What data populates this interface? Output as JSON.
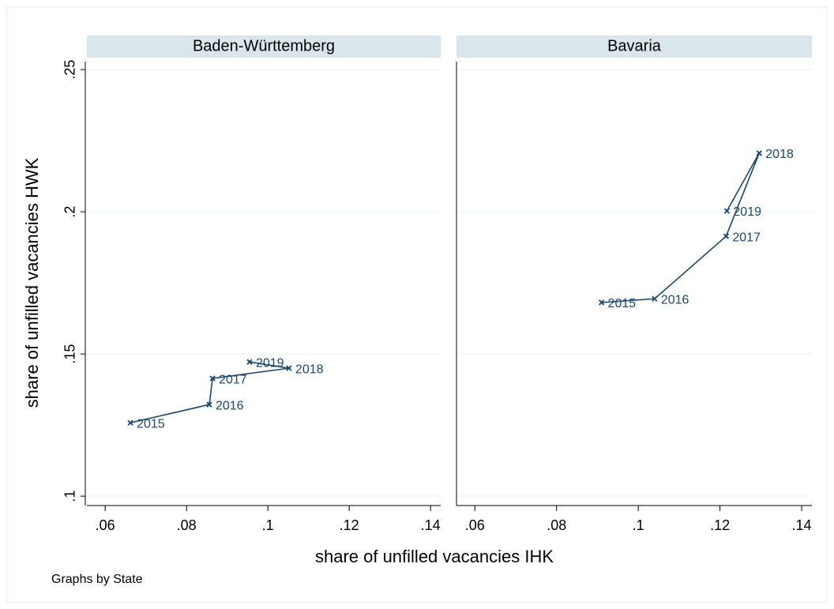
{
  "chart_data": [
    {
      "type": "scatter",
      "title": "Baden-Württemberg",
      "x": [
        0.0662,
        0.0856,
        0.0864,
        0.1052,
        0.0955
      ],
      "values": [
        0.1258,
        0.1322,
        0.1414,
        0.145,
        0.1472
      ],
      "labels": [
        "2015",
        "2016",
        "2017",
        "2018",
        "2019"
      ],
      "color": "#1a476f",
      "connected": true,
      "xlim": [
        0.0555,
        0.1425
      ],
      "ylim": [
        0.0967,
        0.2528
      ],
      "xticks": [
        {
          "value": 0.06,
          "label": ".06"
        },
        {
          "value": 0.08,
          "label": ".08"
        },
        {
          "value": 0.1,
          "label": ".1"
        },
        {
          "value": 0.12,
          "label": ".12"
        },
        {
          "value": 0.14,
          "label": ".14"
        }
      ],
      "yticks": [
        {
          "value": 0.1,
          "label": ".1"
        },
        {
          "value": 0.15,
          "label": ".15"
        },
        {
          "value": 0.2,
          "label": ".2"
        },
        {
          "value": 0.25,
          "label": ".25"
        }
      ],
      "grid": true
    },
    {
      "type": "scatter",
      "title": "Bavaria",
      "x": [
        0.091,
        0.104,
        0.1215,
        0.1296,
        0.1217
      ],
      "values": [
        0.1681,
        0.1694,
        0.1914,
        0.2206,
        0.2003
      ],
      "labels": [
        "2015",
        "2016",
        "2017",
        "2018",
        "2019"
      ],
      "color": "#1a476f",
      "connected": true,
      "xlim": [
        0.0555,
        0.1425
      ],
      "ylim": [
        0.0967,
        0.2528
      ],
      "xticks": [
        {
          "value": 0.06,
          "label": ".06"
        },
        {
          "value": 0.08,
          "label": ".08"
        },
        {
          "value": 0.1,
          "label": ".1"
        },
        {
          "value": 0.12,
          "label": ".12"
        },
        {
          "value": 0.14,
          "label": ".14"
        }
      ],
      "yticks": [
        {
          "value": 0.1,
          "label": ".1"
        },
        {
          "value": 0.15,
          "label": ".15"
        },
        {
          "value": 0.2,
          "label": ".2"
        },
        {
          "value": 0.25,
          "label": ".25"
        }
      ],
      "grid": true
    }
  ],
  "xlabel": "share of unfilled vacancies IHK",
  "ylabel": "share of unfilled vacancies HWK",
  "note": "Graphs by State"
}
